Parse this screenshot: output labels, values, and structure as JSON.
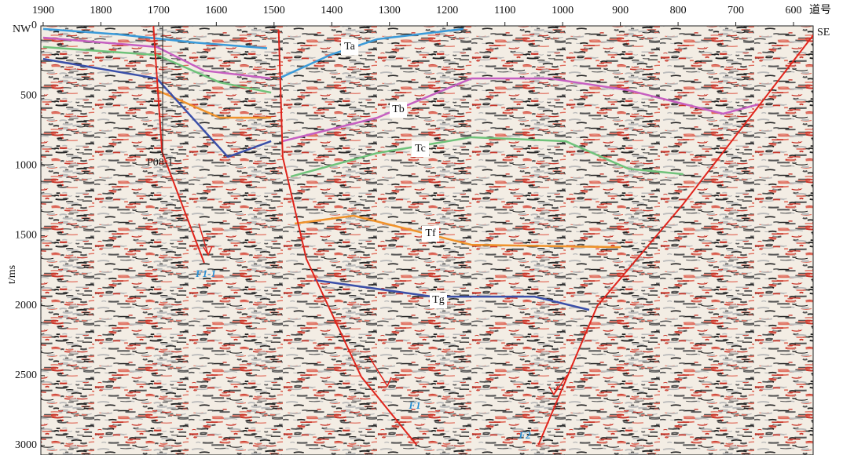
{
  "chart_data": {
    "type": "seismic-section",
    "x_axis_unit": "道号",
    "y_axis_label": "t/ms",
    "left_direction": "NW",
    "right_direction": "SE",
    "well_label": "P08-1",
    "xlim": [
      1904,
      566
    ],
    "xticks": [
      1900,
      1800,
      1700,
      1600,
      1500,
      1400,
      1300,
      1200,
      1100,
      1000,
      900,
      800,
      700,
      600
    ],
    "ylim": [
      0,
      3000
    ],
    "yticks": [
      0,
      500,
      1000,
      1500,
      2000,
      2500,
      3000
    ],
    "series": [
      {
        "name": "Ta",
        "color": "#3a9ad9",
        "x": [
          1900,
          1771,
          1635,
          1512,
          1500,
          1492,
          1403,
          1321,
          1172
        ],
        "values": [
          22,
          60,
          120,
          160,
          null,
          376,
          208,
          95,
          22
        ]
      },
      {
        "name": "Tb",
        "color": "#c65fc1",
        "x": [
          1900,
          1703,
          1621,
          1506,
          1500,
          1485,
          1321,
          1158,
          1022,
          886,
          722,
          661
        ],
        "values": [
          84,
          151,
          320,
          376,
          null,
          824,
          656,
          376,
          376,
          460,
          628,
          561
        ]
      },
      {
        "name": "Tc",
        "color": "#6fc27a",
        "x": [
          1900,
          1703,
          1594,
          1505,
          1500,
          1471,
          1321,
          1158,
          995,
          886,
          791
        ],
        "values": [
          151,
          208,
          404,
          477,
          null,
          1077,
          909,
          796,
          824,
          1021,
          1060
        ]
      },
      {
        "name": "Tf",
        "color": "#f0922a",
        "x": [
          1703,
          1594,
          1505,
          1500,
          1464,
          1362,
          1158,
          899
        ],
        "values": [
          460,
          656,
          656,
          null,
          1413,
          1357,
          1565,
          1582
        ]
      },
      {
        "name": "Tg",
        "color": "#3a4fa8",
        "x": [
          1900,
          1703,
          1580,
          1505,
          1500,
          1430,
          1226,
          1049,
          954
        ],
        "values": [
          236,
          376,
          937,
          824,
          null,
          1817,
          1935,
          1935,
          2030
        ]
      }
    ],
    "faults": [
      {
        "label": "F1-1",
        "color": "#e0241c",
        "x": [
          1709,
          1694,
          1621
        ],
        "values": [
          0,
          900,
          1694
        ]
      },
      {
        "label": "F1",
        "color": "#e0241c",
        "x": [
          1492,
          1485,
          1444,
          1349,
          1253
        ],
        "values": [
          28,
          937,
          1666,
          2507,
          2995
        ]
      },
      {
        "label": "F2",
        "color": "#e0241c",
        "x": [
          566,
          791,
          940,
          1042
        ],
        "values": [
          67,
          1273,
          2002,
          2995
        ]
      }
    ]
  }
}
